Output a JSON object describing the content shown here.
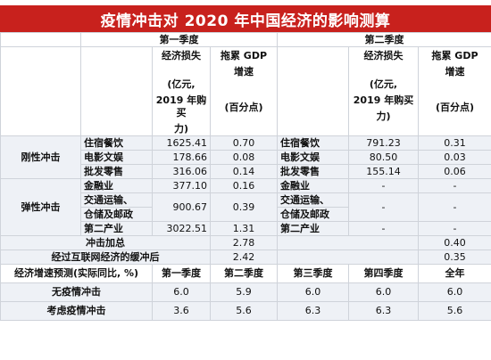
{
  "title": "疫情冲击对 2020 年中国经济的影响测算",
  "header": {
    "q1": "第一季度",
    "q2": "第二季度",
    "loss_label": "经济损失",
    "gdp_label": "拖累 GDP",
    "gdp_label_2": "增速",
    "loss_unit_1": "(亿元,",
    "loss_unit_2": "2019 年购买",
    "loss_unit_3": "力)",
    "gdp_unit": "(百分点)"
  },
  "groups": {
    "rigid": "刚性冲击",
    "elastic": "弹性冲击"
  },
  "rows": [
    {
      "cat_q1": "住宿餐饮",
      "loss_q1": "1625.41",
      "gdp_q1": "0.70",
      "cat_q2": "住宿餐饮",
      "loss_q2": "791.23",
      "gdp_q2": "0.31"
    },
    {
      "cat_q1": "电影文娱",
      "loss_q1": "178.66",
      "gdp_q1": "0.08",
      "cat_q2": "电影文娱",
      "loss_q2": "80.50",
      "gdp_q2": "0.03"
    },
    {
      "cat_q1": "批发零售",
      "loss_q1": "316.06",
      "gdp_q1": "0.14",
      "cat_q2": "批发零售",
      "loss_q2": "155.14",
      "gdp_q2": "0.06"
    },
    {
      "cat_q1": "金融业",
      "loss_q1": "377.10",
      "gdp_q1": "0.16",
      "cat_q2": "金融业",
      "loss_q2": "-",
      "gdp_q2": "-"
    },
    {
      "cat_q1a": "交通运输、",
      "cat_q1b": "仓储及邮政",
      "loss_q1": "900.67",
      "gdp_q1": "0.39",
      "cat_q2a": "交通运输、",
      "cat_q2b": "仓储及邮政",
      "loss_q2": "-",
      "gdp_q2": "-"
    },
    {
      "cat_q1": "第二产业",
      "loss_q1": "3022.51",
      "gdp_q1": "1.31",
      "cat_q2": "第二产业",
      "loss_q2": "-",
      "gdp_q2": "-"
    }
  ],
  "summary": {
    "total_label": "冲击加总",
    "total_q1": "2.78",
    "total_q2": "0.40",
    "buffer_label": "经过互联网经济的缓冲后",
    "buffer_q1": "2.42",
    "buffer_q2": "0.35"
  },
  "forecast": {
    "header_label": "经济增速预测(实际同比, %)",
    "columns": [
      "第一季度",
      "第二季度",
      "第三季度",
      "第四季度",
      "全年"
    ],
    "rows": [
      {
        "label": "无疫情冲击",
        "values": [
          "6.0",
          "5.9",
          "6.0",
          "6.0",
          "6.0"
        ]
      },
      {
        "label": "考虑疫情冲击",
        "values": [
          "3.6",
          "5.6",
          "6.3",
          "6.3",
          "5.6"
        ]
      }
    ]
  }
}
